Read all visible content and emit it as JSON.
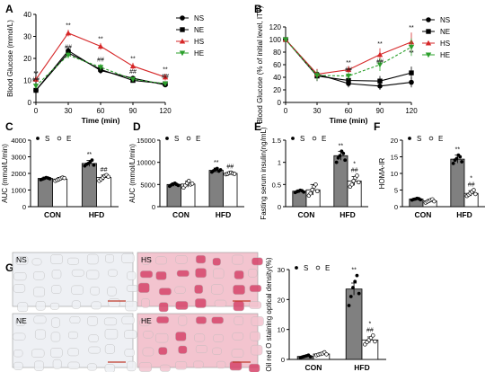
{
  "panel_letters": [
    "A",
    "B",
    "C",
    "D",
    "E",
    "F",
    "G"
  ],
  "colors": {
    "NS": "#000000",
    "NE": "#000000",
    "HS": "#d62728",
    "HE": "#2ca02c",
    "bar_S": "#808080",
    "bar_E": "#ffffff",
    "tissue_normal": "#eef0f4",
    "tissue_stained": "#f3c4cf",
    "stain": "#d6456b"
  },
  "chart_data": [
    {
      "panel": "A",
      "type": "line",
      "xlabel": "Time (min)",
      "ylabel": "Blood Glucose (mmol/L)",
      "x": [
        0,
        30,
        60,
        90,
        120
      ],
      "xlim": [
        0,
        120
      ],
      "ylim": [
        0,
        40
      ],
      "yticks": [
        0,
        10,
        20,
        30,
        40
      ],
      "legend_position": "right",
      "series": [
        {
          "name": "NS",
          "marker": "circle",
          "values": [
            5.5,
            23.5,
            14.5,
            11,
            8
          ],
          "errors": [
            0.5,
            1.5,
            1.5,
            1,
            1
          ]
        },
        {
          "name": "NE",
          "marker": "square",
          "values": [
            5.5,
            22.5,
            15,
            10,
            8.5
          ],
          "errors": [
            0.5,
            1.5,
            1.5,
            1,
            1
          ]
        },
        {
          "name": "HS",
          "marker": "triangle",
          "values": [
            10.5,
            31.5,
            25.5,
            16.5,
            11.5
          ],
          "errors": [
            1,
            1.5,
            1.5,
            1.5,
            1.5
          ]
        },
        {
          "name": "HE",
          "marker": "triangle-down",
          "values": [
            7.5,
            21.5,
            16,
            10.5,
            8.5
          ],
          "errors": [
            0.8,
            1.5,
            1.5,
            1,
            1
          ]
        }
      ],
      "annotations": [
        {
          "x": 0,
          "y": 12.3,
          "text": "**"
        },
        {
          "x": 0,
          "y": 9.5,
          "text": "##"
        },
        {
          "x": 30,
          "y": 34,
          "text": "**"
        },
        {
          "x": 30,
          "y": 24.2,
          "text": "##"
        },
        {
          "x": 60,
          "y": 28,
          "text": "**"
        },
        {
          "x": 60,
          "y": 18.5,
          "text": "##"
        },
        {
          "x": 90,
          "y": 19,
          "text": "**"
        },
        {
          "x": 90,
          "y": 13,
          "text": "##"
        },
        {
          "x": 120,
          "y": 14,
          "text": "**"
        },
        {
          "x": 120,
          "y": 11,
          "text": "##"
        }
      ]
    },
    {
      "panel": "B",
      "type": "line",
      "xlabel": "Time (min)",
      "ylabel": "Blood Glucose (% of initial level, ITT)",
      "x": [
        0,
        30,
        60,
        90,
        120
      ],
      "xlim": [
        0,
        120
      ],
      "ylim": [
        0,
        120
      ],
      "yticks": [
        0,
        20,
        40,
        60,
        80,
        100,
        120
      ],
      "legend_position": "right",
      "series": [
        {
          "name": "NS",
          "marker": "circle",
          "values": [
            100,
            45,
            30,
            26,
            32
          ],
          "errors": [
            0,
            8,
            6,
            6,
            8
          ]
        },
        {
          "name": "NE",
          "marker": "square",
          "values": [
            100,
            42,
            35,
            34,
            47
          ],
          "errors": [
            0,
            8,
            6,
            8,
            10
          ]
        },
        {
          "name": "HS",
          "marker": "triangle",
          "values": [
            100,
            45,
            52,
            76,
            96
          ],
          "errors": [
            0,
            8,
            6,
            10,
            15
          ]
        },
        {
          "name": "HE",
          "marker": "triangle-down",
          "values": [
            100,
            43,
            42,
            60,
            88
          ],
          "errors": [
            0,
            8,
            6,
            10,
            14
          ]
        }
      ],
      "annotations": [
        {
          "x": 60,
          "y": 60,
          "text": "**"
        },
        {
          "x": 60,
          "y": 49,
          "text": "##"
        },
        {
          "x": 90,
          "y": 90,
          "text": "**"
        },
        {
          "x": 90,
          "y": 62,
          "text": "##"
        },
        {
          "x": 120,
          "y": 116,
          "text": "**"
        },
        {
          "x": 120,
          "y": 76,
          "text": "**"
        }
      ]
    },
    {
      "panel": "C",
      "type": "bar",
      "ylabel": "AUC (mmol/L/min)",
      "categories": [
        "CON",
        "HFD"
      ],
      "ylim": [
        0,
        4000
      ],
      "yticks": [
        0,
        1000,
        2000,
        3000,
        4000
      ],
      "legend": [
        "S",
        "E"
      ],
      "legend_position": "top-left",
      "series": [
        {
          "name": "S",
          "values": [
            1700,
            2600
          ],
          "errors": [
            80,
            180
          ],
          "points": [
            [
              1620,
              1660,
              1700,
              1750,
              1720,
              1680
            ],
            [
              2450,
              2550,
              2600,
              2700,
              2800,
              2500
            ]
          ]
        },
        {
          "name": "E",
          "values": [
            1660,
            1750
          ],
          "errors": [
            100,
            150
          ],
          "points": [
            [
              1550,
              1600,
              1650,
              1700,
              1750,
              1720
            ],
            [
              1550,
              1650,
              1750,
              1850,
              1900,
              1800
            ]
          ]
        }
      ],
      "annotations": [
        {
          "category": "HFD",
          "series": "S",
          "text": "**"
        },
        {
          "category": "HFD",
          "series": "E",
          "text": "##"
        }
      ]
    },
    {
      "panel": "D",
      "type": "bar",
      "ylabel": "AUC (mmol/L/min)",
      "categories": [
        "CON",
        "HFD"
      ],
      "ylim": [
        0,
        15000
      ],
      "yticks": [
        0,
        5000,
        10000,
        15000
      ],
      "legend": [
        "S",
        "E"
      ],
      "legend_position": "top-left",
      "series": [
        {
          "name": "S",
          "values": [
            5000,
            8200
          ],
          "errors": [
            400,
            500
          ],
          "points": [
            [
              4600,
              4900,
              5100,
              5300,
              5000,
              4800
            ],
            [
              7800,
              8100,
              8400,
              8600,
              8000,
              8300
            ]
          ]
        },
        {
          "name": "E",
          "values": [
            5100,
            7500
          ],
          "errors": [
            700,
            300
          ],
          "points": [
            [
              4300,
              4800,
              5300,
              5800,
              5000,
              5200
            ],
            [
              7300,
              7400,
              7600,
              7700,
              7500,
              7400
            ]
          ]
        }
      ],
      "annotations": [
        {
          "category": "HFD",
          "series": "S",
          "text": "**"
        },
        {
          "category": "HFD",
          "series": "E",
          "text": "##"
        }
      ]
    },
    {
      "panel": "E",
      "type": "bar",
      "ylabel": "Fasting serum insulin(ng/mL)",
      "categories": [
        "CON",
        "HFD"
      ],
      "ylim": [
        0,
        1.5
      ],
      "yticks": [
        0.0,
        0.5,
        1.0,
        1.5
      ],
      "legend": [
        "S",
        "E"
      ],
      "legend_position": "top-left",
      "series": [
        {
          "name": "S",
          "values": [
            0.35,
            1.15
          ],
          "errors": [
            0.03,
            0.1
          ],
          "points": [
            [
              0.32,
              0.34,
              0.35,
              0.37,
              0.36,
              0.33
            ],
            [
              1.0,
              1.1,
              1.15,
              1.25,
              1.2,
              1.05
            ]
          ]
        },
        {
          "name": "E",
          "values": [
            0.38,
            0.58
          ],
          "errors": [
            0.12,
            0.1
          ],
          "points": [
            [
              0.25,
              0.3,
              0.38,
              0.45,
              0.5,
              0.35
            ],
            [
              0.45,
              0.5,
              0.58,
              0.65,
              0.7,
              0.55
            ]
          ]
        }
      ],
      "annotations": [
        {
          "category": "HFD",
          "series": "S",
          "text": "**"
        },
        {
          "category": "HFD",
          "series": "E",
          "text": "##"
        },
        {
          "category": "HFD",
          "series": "E",
          "text": "*"
        }
      ]
    },
    {
      "panel": "F",
      "type": "bar",
      "ylabel": "HOMA-IR",
      "categories": [
        "CON",
        "HFD"
      ],
      "ylim": [
        0,
        20
      ],
      "yticks": [
        0,
        5,
        10,
        15,
        20
      ],
      "legend": [
        "S",
        "E"
      ],
      "legend_position": "top-left",
      "series": [
        {
          "name": "S",
          "values": [
            2.3,
            14.3
          ],
          "errors": [
            0.3,
            1.2
          ],
          "points": [
            [
              2.0,
              2.2,
              2.3,
              2.5,
              2.4,
              2.1
            ],
            [
              13.0,
              14.0,
              14.5,
              15.5,
              15.0,
              13.5
            ]
          ]
        },
        {
          "name": "E",
          "values": [
            1.7,
            4.0
          ],
          "errors": [
            0.5,
            0.8
          ],
          "points": [
            [
              1.2,
              1.5,
              1.7,
              2.0,
              2.2,
              1.6
            ],
            [
              3.2,
              3.6,
              4.0,
              4.5,
              5.0,
              3.8
            ]
          ]
        }
      ],
      "annotations": [
        {
          "category": "HFD",
          "series": "S",
          "text": "**"
        },
        {
          "category": "HFD",
          "series": "E",
          "text": "##"
        },
        {
          "category": "HFD",
          "series": "E",
          "text": "*"
        }
      ]
    },
    {
      "panel": "G",
      "type": "bar",
      "ylabel": "Oil red O staining optical density(%)",
      "categories": [
        "CON",
        "HFD"
      ],
      "ylim": [
        0,
        30
      ],
      "yticks": [
        0,
        10,
        20,
        30
      ],
      "legend": [
        "S",
        "E"
      ],
      "legend_position": "top-left",
      "series": [
        {
          "name": "S",
          "values": [
            1.0,
            23.5
          ],
          "errors": [
            0.3,
            2.0
          ],
          "points": [
            [
              0.6,
              0.8,
              1.0,
              1.2,
              1.4,
              0.9
            ],
            [
              18.0,
              21.0,
              24.0,
              26.0,
              28.0,
              22.0
            ]
          ]
        },
        {
          "name": "E",
          "values": [
            1.8,
            6.5
          ],
          "errors": [
            0.4,
            1.0
          ],
          "points": [
            [
              1.4,
              1.6,
              1.8,
              2.0,
              2.4,
              1.7
            ],
            [
              5.0,
              5.8,
              6.5,
              7.2,
              8.0,
              6.0
            ]
          ]
        }
      ],
      "annotations": [
        {
          "category": "HFD",
          "series": "S",
          "text": "**"
        },
        {
          "category": "HFD",
          "series": "E",
          "text": "##"
        },
        {
          "category": "HFD",
          "series": "E",
          "text": "*"
        }
      ]
    }
  ],
  "micrographs": [
    {
      "label": "NS",
      "stained": false
    },
    {
      "label": "HS",
      "stained": true
    },
    {
      "label": "NE",
      "stained": false
    },
    {
      "label": "HE",
      "stained": true
    }
  ]
}
